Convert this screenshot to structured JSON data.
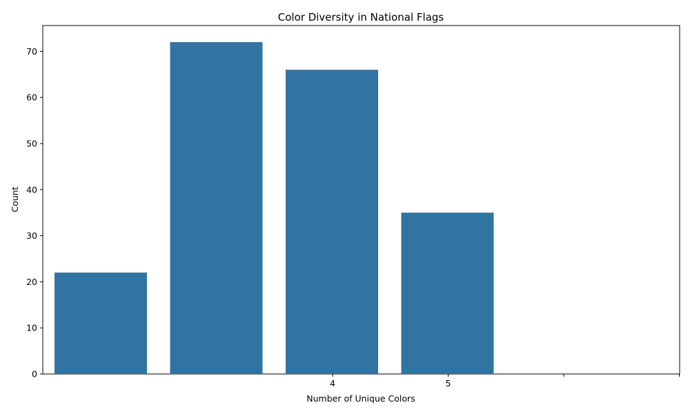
{
  "chart_data": {
    "type": "bar",
    "title": "Color Diversity in National Flags",
    "xlabel": "Number of Unique Colors",
    "ylabel": "Count",
    "values": [
      22,
      72,
      66,
      35
    ],
    "x_tick_labels": [
      "4",
      "5",
      "",
      ""
    ],
    "y_ticks": [
      0,
      10,
      20,
      30,
      40,
      50,
      60,
      70
    ],
    "ylim": [
      0,
      75.6
    ],
    "bar_color": "#3274a1",
    "grid": false,
    "legend": "none"
  }
}
